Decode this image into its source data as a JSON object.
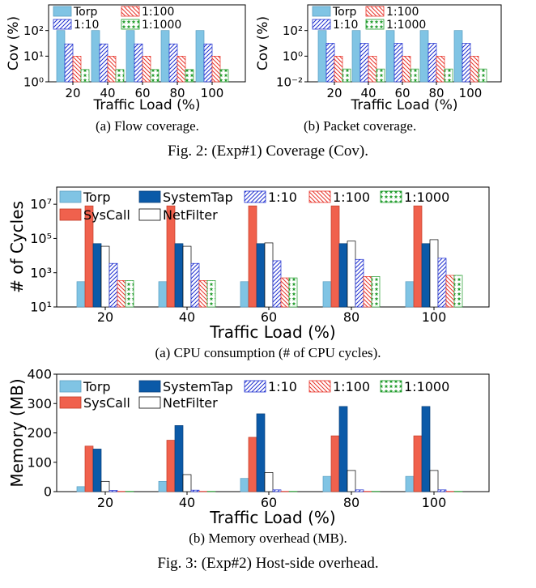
{
  "chart_data": [
    {
      "id": "fig2a",
      "type": "bar",
      "scale": "log",
      "categories": [
        "20",
        "40",
        "60",
        "80",
        "100"
      ],
      "series": [
        {
          "name": "Torp",
          "values": [
            100,
            100,
            100,
            100,
            100
          ]
        },
        {
          "name": "1:10",
          "values": [
            30,
            30,
            30,
            30,
            30
          ]
        },
        {
          "name": "1:100",
          "values": [
            10,
            10,
            10,
            10,
            10
          ]
        },
        {
          "name": "1:1000",
          "values": [
            3,
            3,
            3,
            3,
            3
          ]
        }
      ],
      "xlabel": "Traffic Load (%)",
      "ylabel": "Cov (%)",
      "ylim": [
        1,
        1000
      ],
      "yticks": [
        "10⁰",
        "10¹",
        "10²"
      ],
      "legend": "top, 2 columns",
      "caption": "(a) Flow coverage."
    },
    {
      "id": "fig2b",
      "type": "bar",
      "scale": "log",
      "categories": [
        "20",
        "40",
        "60",
        "80",
        "100"
      ],
      "series": [
        {
          "name": "Torp",
          "values": [
            100,
            100,
            100,
            100,
            100
          ]
        },
        {
          "name": "1:10",
          "values": [
            10,
            10,
            10,
            10,
            10
          ]
        },
        {
          "name": "1:100",
          "values": [
            1,
            1,
            1,
            1,
            1
          ]
        },
        {
          "name": "1:1000",
          "values": [
            0.1,
            0.1,
            0.1,
            0.1,
            0.1
          ]
        }
      ],
      "xlabel": "Traffic Load (%)",
      "ylabel": "Cov (%)",
      "ylim": [
        0.01,
        10000
      ],
      "yticks": [
        "10⁻²",
        "10⁰",
        "10²"
      ],
      "legend": "top, 2 columns",
      "caption": "(b) Packet coverage."
    },
    {
      "id": "fig3a",
      "type": "bar",
      "scale": "log",
      "categories": [
        "20",
        "40",
        "60",
        "80",
        "100"
      ],
      "series": [
        {
          "name": "Torp",
          "values": [
            300,
            300,
            300,
            300,
            300
          ]
        },
        {
          "name": "SysCall",
          "values": [
            8000000,
            8000000,
            8000000,
            8000000,
            8000000
          ]
        },
        {
          "name": "SystemTap",
          "values": [
            50000,
            50000,
            50000,
            50000,
            50000
          ]
        },
        {
          "name": "NetFilter",
          "values": [
            35000,
            35000,
            55000,
            70000,
            85000
          ]
        },
        {
          "name": "1:10",
          "values": [
            3500,
            3500,
            5000,
            6000,
            7000
          ]
        },
        {
          "name": "1:100",
          "values": [
            350,
            350,
            500,
            600,
            700
          ]
        },
        {
          "name": "1:1000",
          "values": [
            350,
            350,
            500,
            600,
            700
          ]
        }
      ],
      "xlabel": "Traffic Load (%)",
      "ylabel": "# of Cycles",
      "ylim": [
        10,
        100000000
      ],
      "yticks": [
        "10¹",
        "10³",
        "10⁵",
        "10⁷"
      ],
      "legend": "top, 5 columns",
      "caption": "(a) CPU consumption (# of CPU cycles)."
    },
    {
      "id": "fig3b",
      "type": "bar",
      "scale": "linear",
      "categories": [
        "20",
        "40",
        "60",
        "80",
        "100"
      ],
      "series": [
        {
          "name": "Torp",
          "values": [
            17,
            35,
            45,
            52,
            52
          ]
        },
        {
          "name": "SysCall",
          "values": [
            155,
            175,
            185,
            190,
            190
          ]
        },
        {
          "name": "SystemTap",
          "values": [
            145,
            225,
            265,
            290,
            290
          ]
        },
        {
          "name": "NetFilter",
          "values": [
            35,
            58,
            65,
            72,
            72
          ]
        },
        {
          "name": "1:10",
          "values": [
            4,
            5,
            6,
            6,
            6
          ]
        },
        {
          "name": "1:100",
          "values": [
            1,
            1,
            1,
            1,
            1
          ]
        },
        {
          "name": "1:1000",
          "values": [
            1,
            1,
            1,
            1,
            1
          ]
        }
      ],
      "xlabel": "Traffic Load (%)",
      "ylabel": "Memory (MB)",
      "ylim": [
        0,
        400
      ],
      "yticks": [
        "0",
        "100",
        "200",
        "300",
        "400"
      ],
      "legend": "top, 5 columns",
      "caption": "(b) Memory overhead (MB)."
    }
  ],
  "figures": {
    "fig2_caption": "Fig. 2: (Exp#1) Coverage (Cov).",
    "fig3_caption": "Fig. 3: (Exp#2) Host-side overhead."
  },
  "colors": {
    "Torp": "#80c4e4",
    "SysCall": "#f0614d",
    "SystemTap": "#0b5aa8",
    "NetFilter": "#ffffff",
    "1:10": "#1f2fd0",
    "1:100": "#e8342a",
    "1:1000": "#1f9b2a"
  }
}
